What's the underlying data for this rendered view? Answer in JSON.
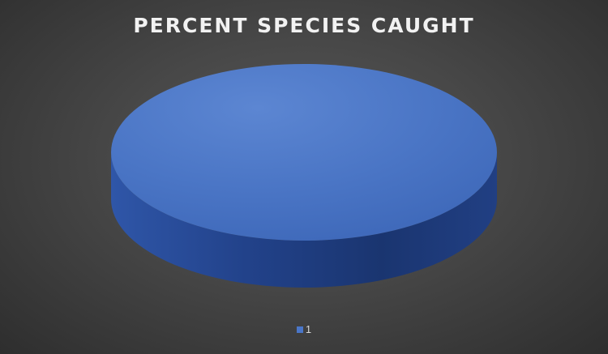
{
  "chart_data": {
    "type": "pie",
    "title": "PERCENT SPECIES CAUGHT",
    "categories": [
      "1"
    ],
    "values": [
      1
    ],
    "style": "3d",
    "legend_position": "bottom",
    "colors": {
      "slice_top": "#4a76c8",
      "slice_side": "#2a4a93",
      "background": "#404040",
      "title": "#f2f2f2",
      "legend_text": "#d9d9d9"
    }
  }
}
